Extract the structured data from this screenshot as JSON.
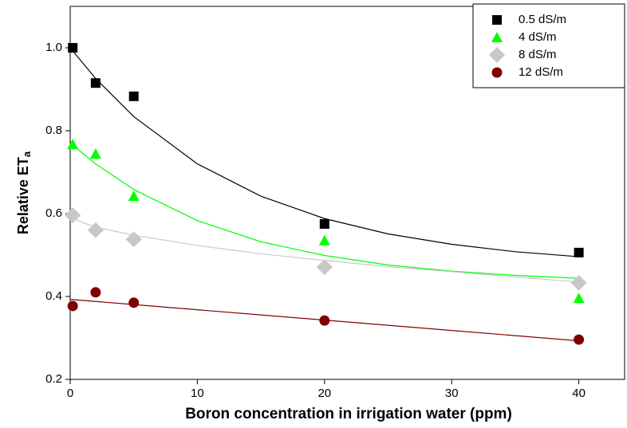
{
  "chart_data": {
    "type": "scatter",
    "x_label": "Boron concentration in irrigation water (ppm)",
    "y_label": "Relative ET",
    "y_label_sub": "a",
    "x": [
      0.2,
      2,
      5,
      20,
      40
    ],
    "fit_x": [
      0,
      2,
      5,
      10,
      15,
      20,
      25,
      30,
      35,
      40
    ],
    "series": [
      {
        "name": "0.5 dS/m",
        "color": "#000000",
        "marker": "square",
        "values": [
          1.0,
          0.915,
          0.883,
          0.575,
          0.506
        ],
        "fit": [
          1.0,
          0.926,
          0.834,
          0.72,
          0.642,
          0.588,
          0.551,
          0.526,
          0.508,
          0.496
        ]
      },
      {
        "name": "4 dS/m",
        "color": "#00ff00",
        "marker": "triangle",
        "values": [
          0.767,
          0.744,
          0.642,
          0.535,
          0.396
        ],
        "fit": [
          0.77,
          0.72,
          0.658,
          0.583,
          0.532,
          0.499,
          0.476,
          0.461,
          0.451,
          0.444
        ]
      },
      {
        "name": "8 dS/m",
        "color": "#c8c8c8",
        "marker": "diamond",
        "values": [
          0.596,
          0.56,
          0.538,
          0.471,
          0.433
        ],
        "fit": [
          0.59,
          0.567,
          0.548,
          0.523,
          0.503,
          0.487,
          0.472,
          0.46,
          0.447,
          0.435
        ]
      },
      {
        "name": "12 dS/m",
        "color": "#800000",
        "marker": "circle",
        "values": [
          0.377,
          0.41,
          0.385,
          0.342,
          0.296
        ],
        "fit": [
          0.393,
          0.388,
          0.3805,
          0.368,
          0.3555,
          0.343,
          0.3305,
          0.318,
          0.3055,
          0.293
        ]
      }
    ],
    "xlim": [
      0,
      43.6
    ],
    "xticks": [
      0,
      10,
      20,
      30,
      40
    ],
    "ylim": [
      0.2,
      1.1
    ],
    "yticks": [
      0.2,
      0.4,
      0.6,
      0.8,
      {
        "value": 1,
        "label": "1.0"
      }
    ],
    "legend": "upper right"
  }
}
